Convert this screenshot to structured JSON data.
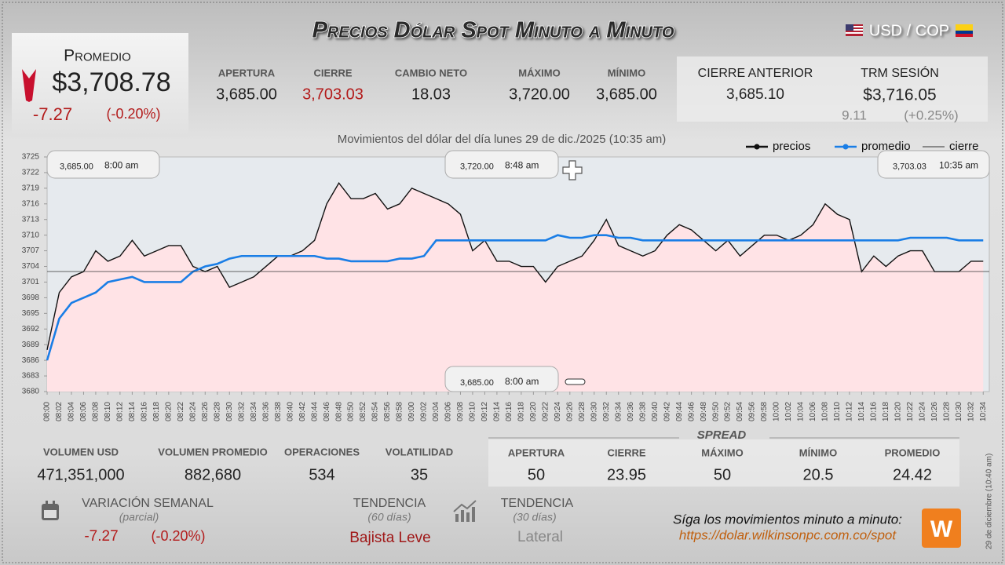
{
  "header": {
    "title": "Precios Dólar Spot Minuto a Minuto",
    "pair": "USD / COP"
  },
  "promedio": {
    "label": "Promedio",
    "value": "$3,708.78",
    "change": "-7.27",
    "change_pct": "(-0.20%)"
  },
  "stats": [
    {
      "label": "APERTURA",
      "value": "3,685.00"
    },
    {
      "label": "CIERRE",
      "value": "3,703.03"
    },
    {
      "label": "CAMBIO NETO",
      "value": "18.03"
    },
    {
      "label": "MÁXIMO",
      "value": "3,720.00"
    },
    {
      "label": "MÍNIMO",
      "value": "3,685.00"
    }
  ],
  "previous": {
    "cierre_label": "CIERRE ANTERIOR",
    "cierre_value": "3,685.10",
    "trm_label": "TRM SESIÓN",
    "trm_value": "$3,716.05",
    "trm_change": "9.11",
    "trm_change_pct": "(+0.25%)"
  },
  "chart_data": {
    "type": "line",
    "subtitle": "Movimientos del dólar del día lunes 29 de dic./2025 (10:35 am)",
    "categories": [
      "08:00",
      "08:02",
      "08:04",
      "08:06",
      "08:08",
      "08:10",
      "08:12",
      "08:14",
      "08:16",
      "08:18",
      "08:20",
      "08:22",
      "08:24",
      "08:26",
      "08:28",
      "08:30",
      "08:32",
      "08:34",
      "08:36",
      "08:38",
      "08:40",
      "08:42",
      "08:44",
      "08:46",
      "08:48",
      "08:50",
      "08:52",
      "08:54",
      "08:56",
      "08:58",
      "09:00",
      "09:02",
      "09:04",
      "09:06",
      "09:08",
      "09:10",
      "09:12",
      "09:14",
      "09:16",
      "09:18",
      "09:20",
      "09:22",
      "09:24",
      "09:26",
      "09:28",
      "09:30",
      "09:32",
      "09:34",
      "09:36",
      "09:38",
      "09:40",
      "09:42",
      "09:44",
      "09:46",
      "09:48",
      "09:50",
      "09:52",
      "09:54",
      "09:56",
      "09:58",
      "10:00",
      "10:02",
      "10:04",
      "10:06",
      "10:08",
      "10:10",
      "10:12",
      "10:14",
      "10:16",
      "10:18",
      "10:20",
      "10:22",
      "10:24",
      "10:26",
      "10:28",
      "10:30",
      "10:32",
      "10:34"
    ],
    "series": [
      {
        "name": "precios",
        "color": "#111111",
        "values": [
          3688,
          3699,
          3702,
          3703,
          3707,
          3705,
          3706,
          3709,
          3706,
          3707,
          3708,
          3708,
          3704,
          3703,
          3704,
          3700,
          3701,
          3702,
          3704,
          3706,
          3706,
          3707,
          3709,
          3716,
          3720,
          3717,
          3717,
          3718,
          3715,
          3716,
          3719,
          3718,
          3717,
          3716,
          3714,
          3707,
          3709,
          3705,
          3705,
          3704,
          3704,
          3701,
          3704,
          3705,
          3706,
          3709,
          3713,
          3708,
          3707,
          3706,
          3707,
          3710,
          3712,
          3711,
          3709,
          3707,
          3709,
          3706,
          3708,
          3710,
          3710,
          3709,
          3710,
          3712,
          3716,
          3714,
          3713,
          3703,
          3706,
          3704,
          3706,
          3707,
          3707,
          3703,
          3703,
          3703,
          3705,
          3705
        ]
      },
      {
        "name": "promedio",
        "color": "#1a7ee6",
        "values": [
          3686,
          3694,
          3697,
          3698,
          3699,
          3701,
          3701.5,
          3702,
          3701,
          3701,
          3701,
          3701,
          3703,
          3704,
          3704.5,
          3705.5,
          3706,
          3706,
          3706,
          3706,
          3706,
          3706,
          3706,
          3705.5,
          3705.5,
          3705,
          3705,
          3705,
          3705,
          3705.5,
          3705.5,
          3706,
          3709,
          3709,
          3709,
          3709,
          3709,
          3709,
          3709,
          3709,
          3709,
          3709,
          3710,
          3709.5,
          3709.5,
          3710,
          3710,
          3709.5,
          3709.5,
          3709,
          3709,
          3709,
          3709,
          3709,
          3709,
          3709,
          3709,
          3709,
          3709,
          3709,
          3709,
          3709,
          3709,
          3709,
          3709,
          3709,
          3709,
          3709,
          3709,
          3709,
          3709,
          3709.5,
          3709.5,
          3709.5,
          3709.5,
          3709,
          3709,
          3709
        ]
      }
    ],
    "reference_line": {
      "name": "cierre",
      "color": "#333333",
      "value": 3703.03
    },
    "ylim": [
      3680,
      3725
    ],
    "yticks": [
      3680,
      3683,
      3686,
      3689,
      3692,
      3695,
      3698,
      3701,
      3704,
      3707,
      3710,
      3713,
      3716,
      3719,
      3722,
      3725
    ],
    "area_color": "#ffe3e6",
    "annotations": [
      {
        "price": "3,685.00",
        "time": "8:00 am"
      },
      {
        "price": "3,720.00",
        "time": "8:48 am"
      },
      {
        "price": "3,703.03",
        "time": "10:35 am"
      },
      {
        "price": "3,685.00",
        "time": "8:00 am"
      }
    ]
  },
  "volume": [
    {
      "label": "VOLUMEN USD",
      "value": "471,351,000"
    },
    {
      "label": "VOLUMEN PROMEDIO",
      "value": "882,680"
    },
    {
      "label": "OPERACIONES",
      "value": "534"
    },
    {
      "label": "VOLATILIDAD",
      "value": "35"
    }
  ],
  "spread": {
    "title": "SPREAD",
    "items": [
      {
        "label": "APERTURA",
        "value": "50"
      },
      {
        "label": "CIERRE",
        "value": "23.95"
      },
      {
        "label": "MÁXIMO",
        "value": "50"
      },
      {
        "label": "MÍNIMO",
        "value": "20.5"
      },
      {
        "label": "PROMEDIO",
        "value": "24.42"
      }
    ]
  },
  "weekly": {
    "label": "VARIACIÓN SEMANAL",
    "sub": "(parcial)",
    "change": "-7.27",
    "change_pct": "(-0.20%)"
  },
  "trend60": {
    "label": "TENDENCIA",
    "sub": "(60 días)",
    "value": "Bajista Leve"
  },
  "trend30": {
    "label": "TENDENCIA",
    "sub": "(30 días)",
    "value": "Lateral"
  },
  "footer": {
    "cta": "Síga los movimientos minuto a minuto:",
    "url": "https://dolar.wilkinsonpc.com.co/spot",
    "stamp": "29 de diciembre (10:40 am)"
  }
}
